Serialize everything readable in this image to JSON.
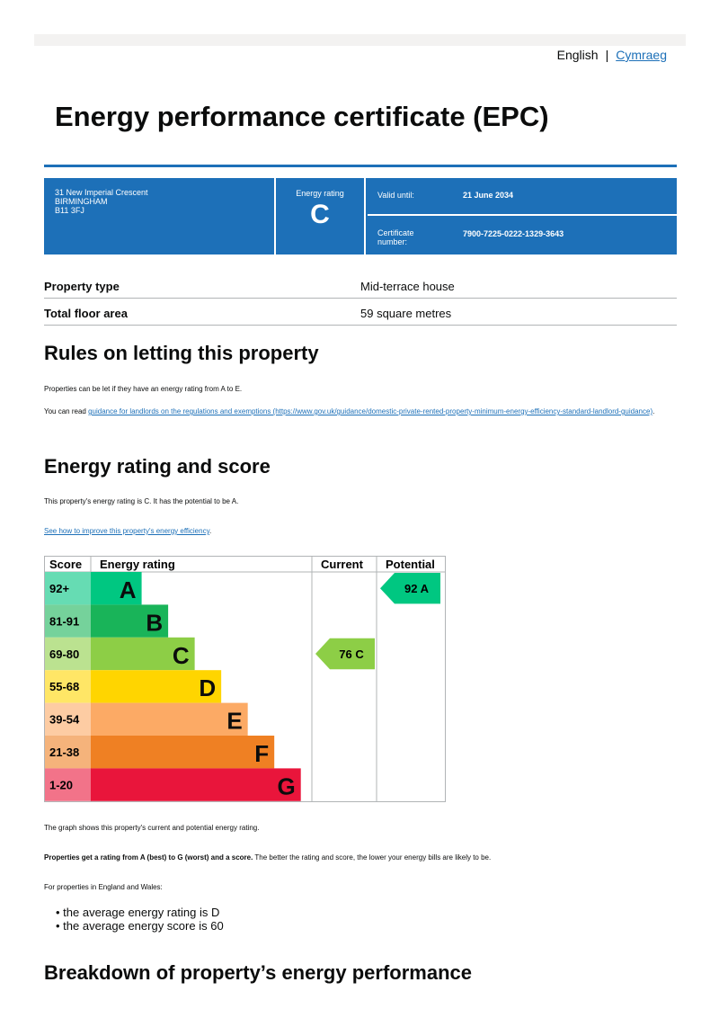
{
  "lang": {
    "english": "English",
    "sep": "|",
    "welsh": "Cymraeg"
  },
  "title": "Energy performance certificate (EPC)",
  "card": {
    "address": [
      "31 New Imperial Crescent",
      "BIRMINGHAM",
      "B11 3FJ"
    ],
    "rating_label": "Energy rating",
    "rating": "C",
    "valid_label": "Valid until:",
    "valid": "21 June 2034",
    "cert_label": "Certificate number:",
    "cert": "7900-7225-0222-1329-3643"
  },
  "summary": [
    {
      "k": "Property type",
      "v": "Mid-terrace house"
    },
    {
      "k": "Total floor area",
      "v": "59 square metres"
    }
  ],
  "letting": {
    "heading": "Rules on letting this property",
    "p1": "Properties can be let if they have an energy rating from A to E.",
    "p2_pre": "You can read ",
    "p2_link": "guidance for landlords on the regulations and exemptions (https://www.gov.uk/guidance/domestic-private-rented-property-minimum-energy-efficiency-standard-landlord-guidance)",
    "p2_post": "."
  },
  "rating": {
    "heading": "Energy rating and score",
    "p1": "This property's energy rating is C. It has the potential to be A.",
    "link": "See how to improve this property's energy efficiency",
    "link_post": "."
  },
  "chart_data": {
    "type": "table",
    "headers": [
      "Score",
      "Energy rating",
      "Current",
      "Potential"
    ],
    "bands": [
      {
        "score": "92+",
        "letter": "A",
        "color": "#00c781",
        "tint": "#66dcb3",
        "w": 0.23
      },
      {
        "score": "81-91",
        "letter": "B",
        "color": "#19b459",
        "tint": "#75d29b",
        "w": 0.35
      },
      {
        "score": "69-80",
        "letter": "C",
        "color": "#8dce46",
        "tint": "#bbe290",
        "w": 0.47
      },
      {
        "score": "55-68",
        "letter": "D",
        "color": "#ffd500",
        "tint": "#ffe666",
        "w": 0.59
      },
      {
        "score": "39-54",
        "letter": "E",
        "color": "#fcaa65",
        "tint": "#fdcca3",
        "w": 0.71
      },
      {
        "score": "21-38",
        "letter": "F",
        "color": "#ef8023",
        "tint": "#f5b37b",
        "w": 0.83
      },
      {
        "score": "1-20",
        "letter": "G",
        "color": "#e9153b",
        "tint": "#f27389",
        "w": 0.95
      }
    ],
    "current": {
      "score": 76,
      "letter": "C",
      "label": "76  C",
      "band": 2
    },
    "potential": {
      "score": 92,
      "letter": "A",
      "label": "92  A",
      "band": 0
    }
  },
  "after": {
    "p1": "The graph shows this property's current and potential energy rating.",
    "p2_bold": "Properties get a rating from A (best) to G (worst) and a score.",
    "p2": " The better the rating and score, the lower your energy bills are likely to be.",
    "p3": "For properties in England and Wales:",
    "bullets": [
      "the average energy rating is D",
      "the average energy score is 60"
    ]
  },
  "breakdown": {
    "heading": "Breakdown of property’s energy performance"
  }
}
